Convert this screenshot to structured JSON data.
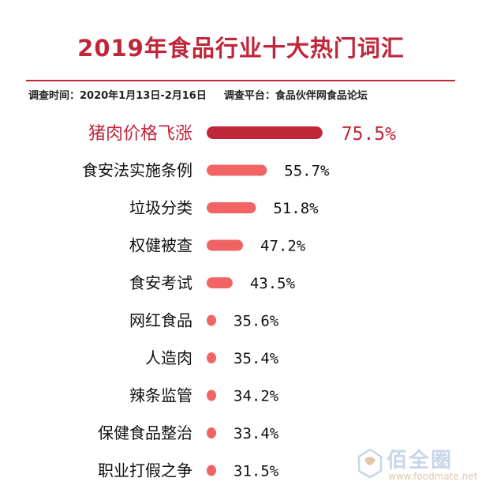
{
  "header": {
    "title": "2019年食品行业十大热门词汇",
    "period_label": "调查时间：2020年1月13日-2月16日",
    "platform_label": "调查平台：食品伙伴网食品论坛"
  },
  "watermark": {
    "text": "佰全圈",
    "url": "www.foodmate.net"
  },
  "colors": {
    "accent": "#c0263a",
    "bar_top": "#c0263a",
    "bar": "#f06464",
    "label_top": "#c0263a",
    "label": "#111111"
  },
  "chart_data": {
    "type": "bar",
    "orientation": "horizontal",
    "title": "2019年食品行业十大热门词汇",
    "categories": [
      "猪肉价格飞涨",
      "食安法实施条例",
      "垃圾分类",
      "权健被查",
      "食安考试",
      "网红食品",
      "人造肉",
      "辣条监管",
      "保健食品整治",
      "职业打假之争"
    ],
    "values": [
      75.5,
      55.7,
      51.8,
      47.2,
      43.5,
      35.6,
      35.4,
      34.2,
      33.4,
      31.5
    ],
    "value_labels": [
      "75.5%",
      "55.7%",
      "51.8%",
      "47.2%",
      "43.5%",
      "35.6%",
      "35.4%",
      "34.2%",
      "33.4%",
      "31.5%"
    ],
    "unit": "%",
    "highlight_index": 0,
    "grid": false,
    "legend": "none"
  }
}
